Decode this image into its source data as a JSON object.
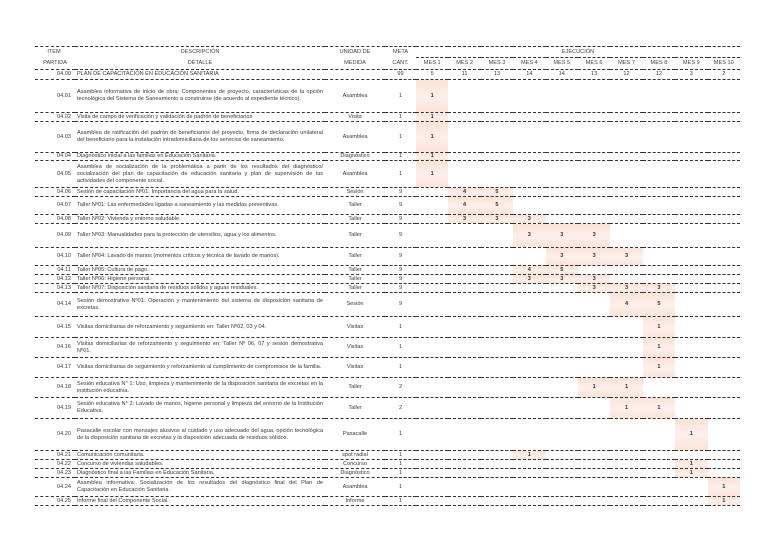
{
  "header": {
    "item": "ITEM",
    "partida": "PARTIDA",
    "descripcion": "DESCRIPCIÓN",
    "detalle": "DETALLE",
    "unidad": "UNIDAD DE",
    "medida": "MEDIDA",
    "meta": "META",
    "cant": "CANT.",
    "ejecucion": "EJECUCIÓN",
    "months": [
      "MES 1",
      "MES 2",
      "MES 3",
      "MES 4",
      "MES 5",
      "MES 6",
      "MES 7",
      "MES 8",
      "MES 9",
      "MES 10"
    ]
  },
  "summary": {
    "item": "04.00",
    "desc": "PLAN DE CAPACITACIÓN EN EDUCACIÓN SANITARIA",
    "meta": "99",
    "month_totals": [
      "5",
      "11",
      "13",
      "14",
      "14",
      "13",
      "12",
      "12",
      "3",
      "2"
    ]
  },
  "highlight_color": "#fbe3d8",
  "rows": [
    {
      "item": "04.01",
      "desc": "Asamblea informativa de inicio de obra: Componentes de proyecto, características de la opción tecnológica del Sistema de Saneamiento a construirse (de acuerdo al expediente técnico).",
      "unit": "Asamblea",
      "meta": "1",
      "months": [
        "1",
        "",
        "",
        "",
        "",
        "",
        "",
        "",
        "",
        ""
      ]
    },
    {
      "item": "04.02",
      "desc": "Visita de campo de verificación y validación de padrón de beneficiarios",
      "unit": "Visita",
      "meta": "1",
      "months": [
        "1",
        "",
        "",
        "",
        "",
        "",
        "",
        "",
        "",
        ""
      ]
    },
    {
      "item": "04.03",
      "desc": "Asamblea de ratificación del padrón de beneficiarios del proyecto, firma de declaración unilateral del beneficiario para la instalación intradomiciliaria de los servicios de saneamiento.",
      "unit": "Asamblea",
      "meta": "1",
      "months": [
        "1",
        "",
        "",
        "",
        "",
        "",
        "",
        "",
        "",
        ""
      ]
    },
    {
      "item": "04.04",
      "desc": "Diagnóstico inicial a las familias en Educación Sanitaria.",
      "unit": "Diagnóstico",
      "meta": "1",
      "months": [
        "1",
        "",
        "",
        "",
        "",
        "",
        "",
        "",
        "",
        ""
      ]
    },
    {
      "item": "04.05",
      "desc": "Asamblea de socialización de la problemática a partir de los resultados del diagnóstico/ socialización del plan de capacitación de educación sanitaria y plan de supervisión de las actividades del componente social.",
      "unit": "Asamblea",
      "meta": "1",
      "months": [
        "1",
        "",
        "",
        "",
        "",
        "",
        "",
        "",
        "",
        ""
      ]
    },
    {
      "item": "04.06",
      "desc": "Sesión de capacitación Nº01: Importancia del agua para la salud.",
      "unit": "Sesión",
      "meta": "9",
      "months": [
        "",
        "4",
        "5",
        "",
        "",
        "",
        "",
        "",
        "",
        ""
      ]
    },
    {
      "item": "04.07",
      "desc": "Taller Nº01: Las enfermedades ligadas a saneamiento y las medidas preventivas.",
      "unit": "Taller",
      "meta": "9",
      "months": [
        "",
        "4",
        "5",
        "",
        "",
        "",
        "",
        "",
        "",
        ""
      ]
    },
    {
      "item": "04.08",
      "desc": "Taller Nº02: Vivienda y entorno saludable.",
      "unit": "Taller",
      "meta": "9",
      "months": [
        "",
        "3",
        "3",
        "3",
        "",
        "",
        "",
        "",
        "",
        ""
      ]
    },
    {
      "item": "04.09",
      "desc": "Taller Nº03: Manualidades para la protección de utensilios, agua y los alimentos.",
      "unit": "Taller",
      "meta": "9",
      "months": [
        "",
        "",
        "",
        "3",
        "3",
        "3",
        "",
        "",
        "",
        ""
      ]
    },
    {
      "item": "04.10",
      "desc": "Taller Nº04: Lavado de manos (momentos críticos y técnica de lavado de manos).",
      "unit": "Taller",
      "meta": "9",
      "months": [
        "",
        "",
        "",
        "",
        "3",
        "3",
        "3",
        "",
        "",
        ""
      ]
    },
    {
      "item": "04.11",
      "desc": "Taller Nº05: Cultura de pago.",
      "unit": "Taller",
      "meta": "9",
      "months": [
        "",
        "",
        "",
        "4",
        "5",
        "",
        "",
        "",
        "",
        ""
      ]
    },
    {
      "item": "04.12",
      "desc": "Taller Nº06: Higiene personal.",
      "unit": "Taller",
      "meta": "9",
      "months": [
        "",
        "",
        "",
        "3",
        "3",
        "3",
        "",
        "",
        "",
        ""
      ]
    },
    {
      "item": "04.13",
      "desc": "Taller Nº07: Disposición sanitaria de residuos sólidos y aguas residuales.",
      "unit": "Taller",
      "meta": "9",
      "months": [
        "",
        "",
        "",
        "",
        "",
        "3",
        "3",
        "3",
        "",
        ""
      ]
    },
    {
      "item": "04.14",
      "desc": "Sesión demostrativa Nº01: Operación y mantenimiento del sistema de disposición sanitaria de excretas.",
      "unit": "Sesión",
      "meta": "9",
      "months": [
        "",
        "",
        "",
        "",
        "",
        "",
        "4",
        "5",
        "",
        ""
      ]
    },
    {
      "item": "04.15",
      "desc": "Visitas domiciliarias de reforzamiento y seguimiento en: Taller Nº02, 03 y 04.",
      "unit": "Visitas",
      "meta": "1",
      "months": [
        "",
        "",
        "",
        "",
        "",
        "",
        "",
        "1",
        "",
        ""
      ]
    },
    {
      "item": "04.16",
      "desc": "Visitas domiciliarias de reforzamiento y seguimiento en: Taller Nº 06, 07 y sesión demostrativa Nº01.",
      "unit": "Visitas",
      "meta": "1",
      "months": [
        "",
        "",
        "",
        "",
        "",
        "",
        "",
        "1",
        "",
        ""
      ]
    },
    {
      "item": "04.17",
      "desc": "Visitas domiciliarias de seguimiento y reforzamiento al cumplimiento de compromisos de la familia.",
      "unit": "Visitas",
      "meta": "1",
      "months": [
        "",
        "",
        "",
        "",
        "",
        "",
        "",
        "1",
        "",
        ""
      ]
    },
    {
      "item": "04.18",
      "desc": "Sesión educativa N° 1: Uso, limpieza y mantenimiento de la disposición sanitaria de excretas en la institución educativa.",
      "unit": "Taller",
      "meta": "2",
      "months": [
        "",
        "",
        "",
        "",
        "",
        "1",
        "1",
        "",
        "",
        ""
      ]
    },
    {
      "item": "04.19",
      "desc": "Sesión educativa N° 2: Lavado de manos, higiene personal y limpieza del entorno de la Institución Educativa.",
      "unit": "Taller",
      "meta": "2",
      "months": [
        "",
        "",
        "",
        "",
        "",
        "",
        "1",
        "1",
        "",
        ""
      ]
    },
    {
      "item": "04.20",
      "desc": "Pasacalle escolar con mensajes alusivos al cuidado y uso adecuado del agua, opción tecnológica de la disposición sanitaria de excretas y la disposición adecuada de residuos sólidos.",
      "unit": "Pasacalle",
      "meta": "1",
      "months": [
        "",
        "",
        "",
        "",
        "",
        "",
        "",
        "",
        "1",
        ""
      ]
    },
    {
      "item": "04.21",
      "desc": "Comunicación comunitaria.",
      "unit": "spot radial",
      "meta": "1",
      "months": [
        "",
        "",
        "",
        "1",
        "",
        "",
        "",
        "",
        "",
        ""
      ]
    },
    {
      "item": "04.22",
      "desc": "Concurso de viviendas saludables.",
      "unit": "Concurso",
      "meta": "1",
      "months": [
        "",
        "",
        "",
        "",
        "",
        "",
        "",
        "",
        "1",
        ""
      ]
    },
    {
      "item": "04.23",
      "desc": "Diagnóstico final a las Familias en Educación Sanitaria.",
      "unit": "Diagnóstico",
      "meta": "1",
      "months": [
        "",
        "",
        "",
        "",
        "",
        "",
        "",
        "",
        "1",
        ""
      ]
    },
    {
      "item": "04.24",
      "desc": "Asamblea informativa: Socialización de los resultados del diagnóstico final del Plan de Capacitación en Educación Sanitaria.",
      "unit": "Asamblea",
      "meta": "1",
      "months": [
        "",
        "",
        "",
        "",
        "",
        "",
        "",
        "",
        "",
        "1"
      ]
    },
    {
      "item": "04.25",
      "desc": "Informe final del Componente Social.",
      "unit": "Informe",
      "meta": "1",
      "months": [
        "",
        "",
        "",
        "",
        "",
        "",
        "",
        "",
        "",
        "1"
      ]
    }
  ]
}
